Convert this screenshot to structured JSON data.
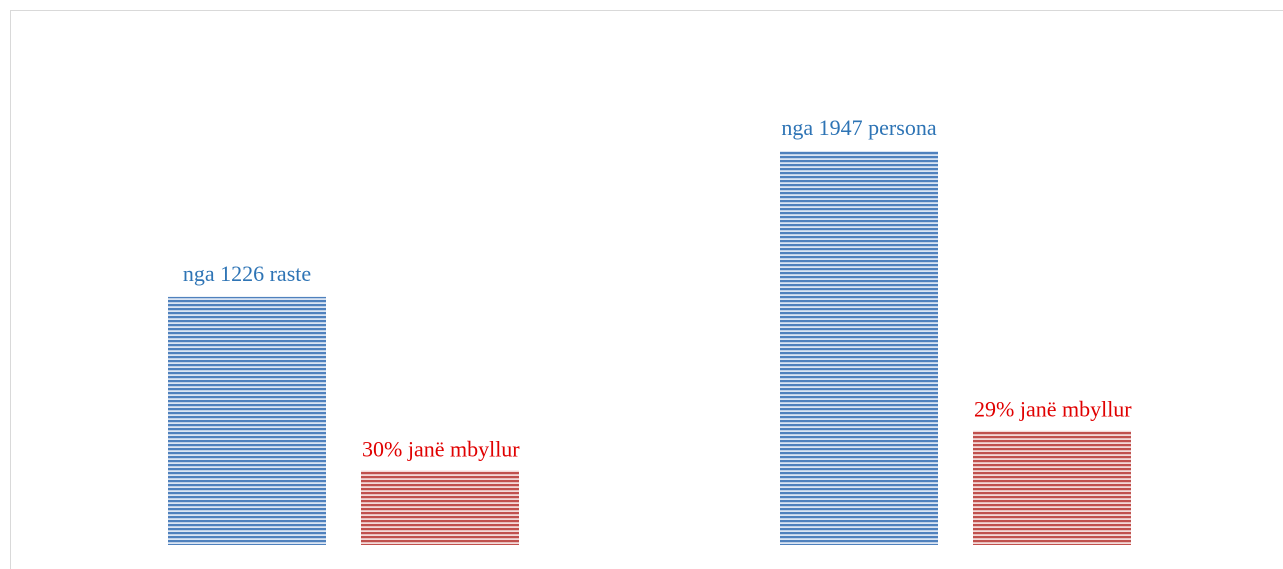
{
  "chart_data": {
    "type": "bar",
    "categories": [
      null,
      null
    ],
    "series": [
      {
        "color": "#4f81bd",
        "values": [
          1226,
          1947
        ],
        "value_labels": [
          "nga 1226 raste",
          "nga 1947 persona"
        ],
        "label_color": "#2e74b5"
      },
      {
        "color": "#c0504d",
        "values": [
          30,
          29
        ],
        "value_labels": [
          "30% janë mbyllur",
          "29% janë mbyllur"
        ],
        "label_color": "#e00000"
      }
    ]
  }
}
